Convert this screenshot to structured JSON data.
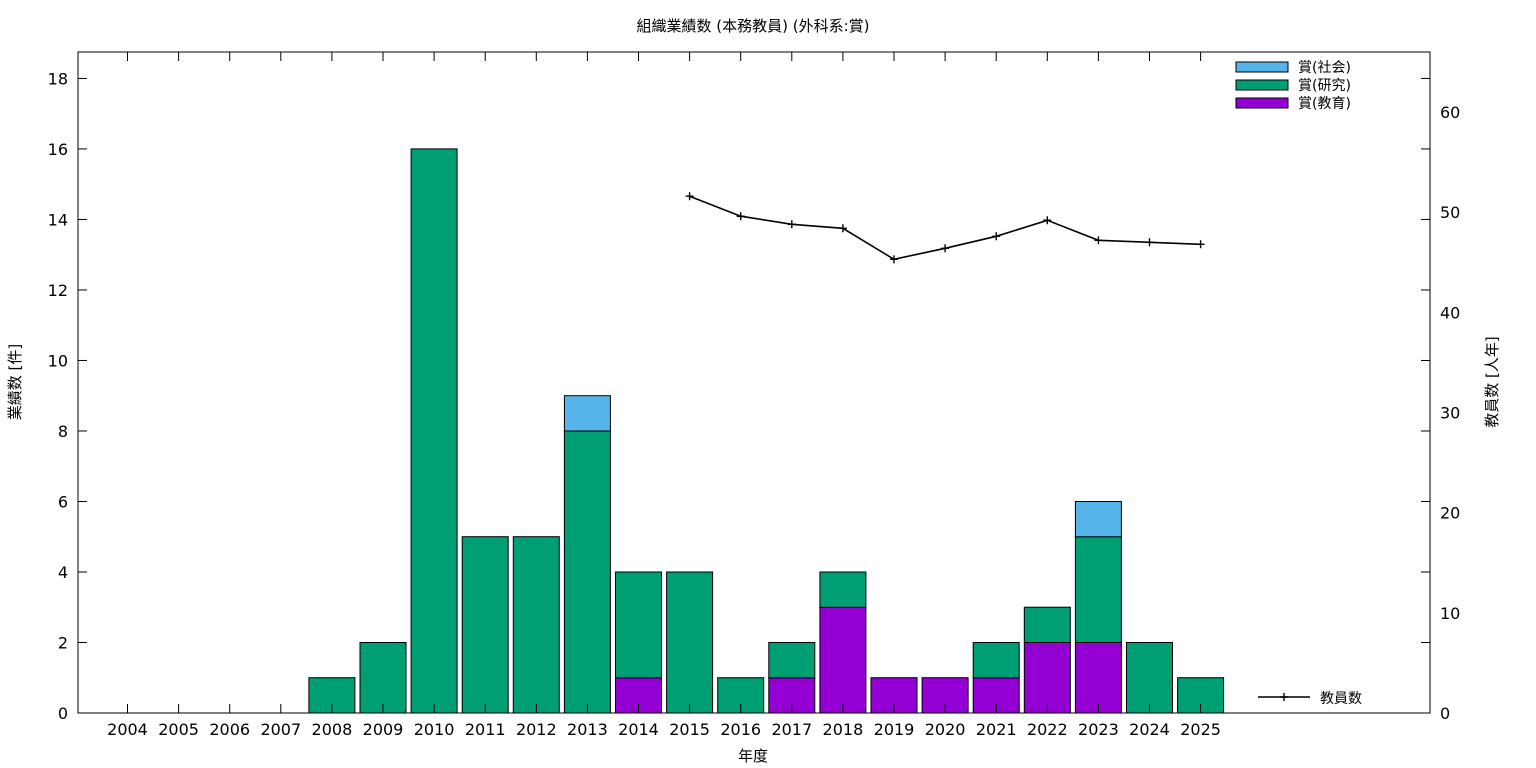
{
  "chart_data": {
    "type": "bar",
    "stacked": true,
    "title": "組織業績数 (本務教員) (外科系:賞)",
    "xlabel": "年度",
    "ylabel": "業績数 [件]",
    "y2label": "教員数 [人年]",
    "ylim": [
      0,
      18.75
    ],
    "y2lim": [
      0,
      66
    ],
    "yticks": [
      0,
      2,
      4,
      6,
      8,
      10,
      12,
      14,
      16,
      18
    ],
    "y2ticks": [
      0,
      10,
      20,
      30,
      40,
      50,
      60
    ],
    "categories": [
      "2004",
      "2005",
      "2006",
      "2007",
      "2008",
      "2009",
      "2010",
      "2011",
      "2012",
      "2013",
      "2014",
      "2015",
      "2016",
      "2017",
      "2018",
      "2019",
      "2020",
      "2021",
      "2022",
      "2023",
      "2024",
      "2025"
    ],
    "series": [
      {
        "name": "賞(教育)",
        "color": "#9400d3",
        "values": [
          0,
          0,
          0,
          0,
          0,
          0,
          0,
          0,
          0,
          0,
          1,
          0,
          0,
          1,
          3,
          1,
          1,
          1,
          2,
          2,
          0,
          0
        ]
      },
      {
        "name": "賞(研究)",
        "color": "#009e73",
        "values": [
          0,
          0,
          0,
          0,
          1,
          2,
          16,
          5,
          5,
          8,
          3,
          4,
          1,
          1,
          1,
          0,
          0,
          1,
          1,
          3,
          2,
          1
        ]
      },
      {
        "name": "賞(社会)",
        "color": "#56b4e9",
        "values": [
          0,
          0,
          0,
          0,
          0,
          0,
          0,
          0,
          0,
          1,
          0,
          0,
          0,
          0,
          0,
          0,
          0,
          0,
          0,
          1,
          0,
          0
        ]
      }
    ],
    "line_series": {
      "name": "教員数",
      "axis": "y2",
      "color": "#000000",
      "values": [
        null,
        null,
        null,
        null,
        null,
        null,
        null,
        null,
        null,
        null,
        null,
        51.6,
        49.6,
        48.8,
        48.4,
        45.3,
        46.4,
        47.6,
        49.2,
        47.2,
        47.0,
        46.8
      ]
    },
    "legend_position": "top-right",
    "grid": false
  }
}
